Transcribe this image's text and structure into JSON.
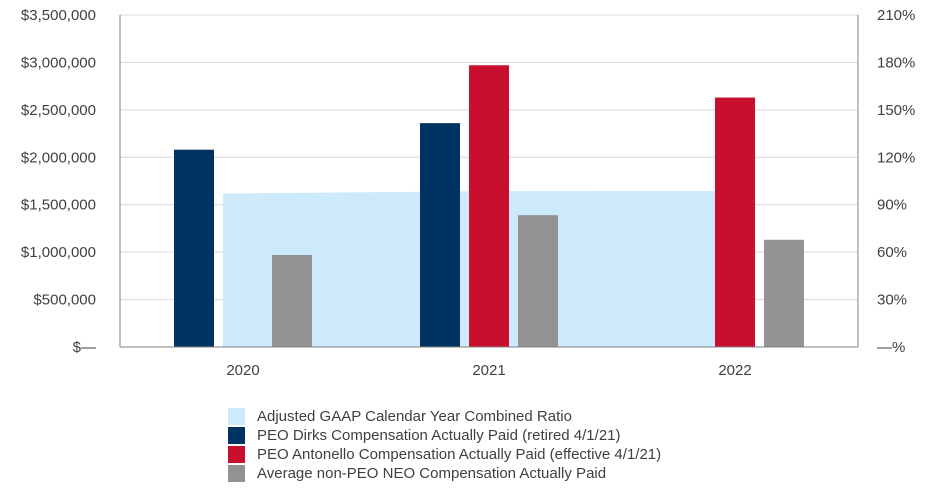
{
  "chart_data": {
    "type": "bar",
    "categories": [
      "2020",
      "2021",
      "2022"
    ],
    "y_left": {
      "ylim": [
        0,
        3500000
      ],
      "ticks": [
        0,
        500000,
        1000000,
        1500000,
        2000000,
        2500000,
        3000000,
        3500000
      ],
      "tick_labels": [
        "$—",
        "$500,000",
        "$1,000,000",
        "$1,500,000",
        "$2,000,000",
        "$2,500,000",
        "$3,000,000",
        "$3,500,000"
      ]
    },
    "y_right": {
      "ylim": [
        0,
        210
      ],
      "ticks": [
        0,
        30,
        60,
        90,
        120,
        150,
        180,
        210
      ],
      "tick_labels": [
        "—%",
        "30%",
        "60%",
        "90%",
        "120%",
        "150%",
        "180%",
        "210%"
      ]
    },
    "area": {
      "name": "Adjusted GAAP Calendar Year Combined Ratio",
      "axis": "right",
      "values": [
        97.1,
        98.5,
        98.8
      ],
      "color": "#cdeafb"
    },
    "series": [
      {
        "name": "PEO Dirks Compensation Actually Paid (retired 4/1/21)",
        "axis": "left",
        "values": [
          2080000,
          2360000,
          null
        ],
        "color": "#003361"
      },
      {
        "name": "PEO Antonello Compensation Actually Paid (effective 4/1/21)",
        "axis": "left",
        "values": [
          null,
          2970000,
          2630000
        ],
        "color": "#c8102e"
      },
      {
        "name": "Average non-PEO NEO Compensation Actually Paid",
        "axis": "left",
        "values": [
          970000,
          1390000,
          1130000
        ],
        "color": "#929292"
      }
    ],
    "grid": true,
    "legend_position": "bottom"
  },
  "legend": [
    {
      "label": "Adjusted GAAP Calendar Year Combined Ratio",
      "color": "#cdeafb"
    },
    {
      "label": "PEO Dirks Compensation Actually Paid (retired 4/1/21)",
      "color": "#003361"
    },
    {
      "label": "PEO Antonello Compensation Actually Paid (effective 4/1/21)",
      "color": "#c8102e"
    },
    {
      "label": "Average non-PEO NEO Compensation Actually Paid",
      "color": "#929292"
    }
  ]
}
